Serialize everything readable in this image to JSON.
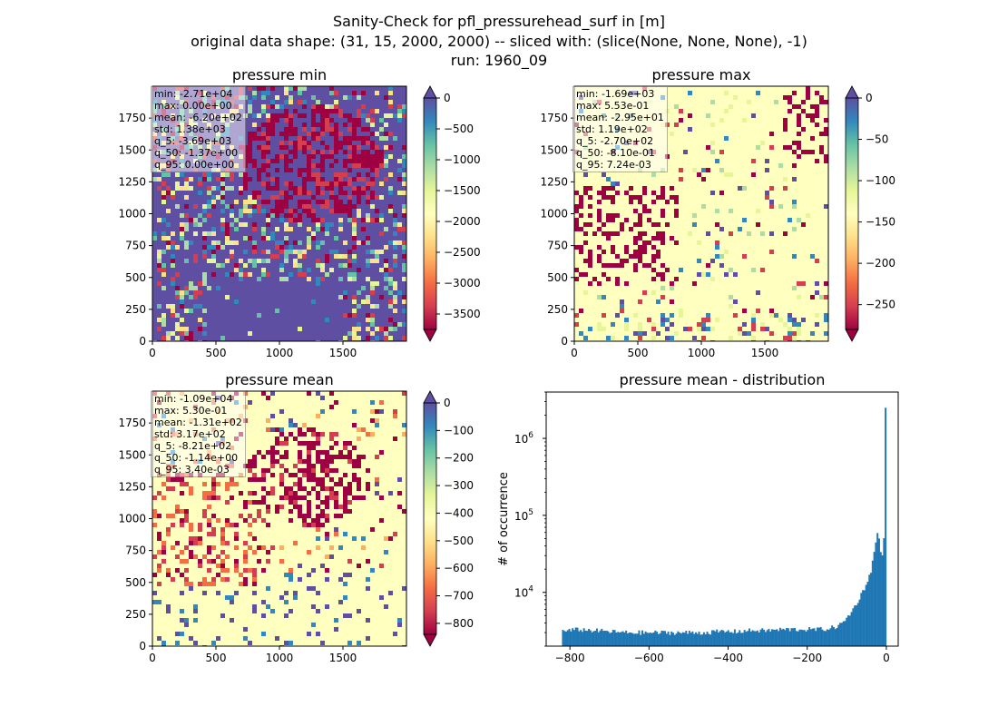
{
  "suptitle": {
    "line1": "Sanity-Check for pfl_pressurehead_surf in [m]",
    "line2": "original data shape: (31, 15, 2000, 2000) -- sliced with: (slice(None, None, None), -1)",
    "line3": "run: 1960_09"
  },
  "chart_data": [
    {
      "type": "heatmap",
      "id": "min",
      "title": "pressure min",
      "xlim": [
        0,
        2000
      ],
      "ylim": [
        0,
        2000
      ],
      "xticks": [
        0,
        500,
        1000,
        1500
      ],
      "yticks": [
        0,
        250,
        500,
        750,
        1000,
        1250,
        1500,
        1750
      ],
      "colormap": "Spectral",
      "colorbar": {
        "min": -3750,
        "max": 0,
        "ticks": [
          0,
          -500,
          -1000,
          -1500,
          -2000,
          -2500,
          -3000,
          -3500
        ],
        "extend": "both",
        "over_color": "#5e4fa2",
        "under_color": "#9e0142"
      },
      "stats": [
        "min: -2.71e+04",
        "max: 0.00e+00",
        "mean: -6.20e+02",
        "std: 1.38e+03",
        "q_5: -3.69e+03",
        "q_50: -1.37e+00",
        "q_95: 0.00e+00"
      ]
    },
    {
      "type": "heatmap",
      "id": "max",
      "title": "pressure max",
      "xlim": [
        0,
        2000
      ],
      "ylim": [
        0,
        2000
      ],
      "xticks": [
        0,
        500,
        1000,
        1500
      ],
      "yticks": [
        0,
        250,
        500,
        750,
        1000,
        1250,
        1500,
        1750
      ],
      "colormap": "Spectral",
      "colorbar": {
        "min": -280,
        "max": 0,
        "ticks": [
          0,
          -50,
          -100,
          -150,
          -200,
          -250
        ],
        "extend": "both",
        "over_color": "#5e4fa2",
        "under_color": "#9e0142"
      },
      "stats": [
        "min: -1.69e+03",
        "max: 5.53e-01",
        "mean: -2.95e+01",
        "std: 1.19e+02",
        "q_5: -2.70e+02",
        "q_50: -8.10e-01",
        "q_95: 7.24e-03"
      ]
    },
    {
      "type": "heatmap",
      "id": "mean",
      "title": "pressure mean",
      "xlim": [
        0,
        2000
      ],
      "ylim": [
        0,
        2000
      ],
      "xticks": [
        0,
        500,
        1000,
        1500
      ],
      "yticks": [
        0,
        250,
        500,
        750,
        1000,
        1250,
        1500,
        1750
      ],
      "colormap": "Spectral",
      "colorbar": {
        "min": -840,
        "max": 0,
        "ticks": [
          0,
          -100,
          -200,
          -300,
          -400,
          -500,
          -600,
          -700,
          -800
        ],
        "extend": "both",
        "over_color": "#5e4fa2",
        "under_color": "#9e0142"
      },
      "stats": [
        "min: -1.09e+04",
        "max: 5.30e-01",
        "mean: -1.31e+02",
        "std: 3.17e+02",
        "q_5: -8.21e+02",
        "q_50: -1.14e+00",
        "q_95: 3.40e-03"
      ]
    },
    {
      "type": "bar",
      "id": "hist",
      "title": "pressure mean - distribution",
      "ylabel": "# of occurrence",
      "xlabel": "",
      "xlim": [
        -860,
        30
      ],
      "ylim_log": [
        2000,
        4000000
      ],
      "yscale": "log",
      "xticks": [
        -800,
        -600,
        -400,
        -200,
        0
      ],
      "yticks": [
        {
          "value": 10000,
          "base": "10",
          "exp": "4"
        },
        {
          "value": 100000,
          "base": "10",
          "exp": "5"
        },
        {
          "value": 1000000,
          "base": "10",
          "exp": "6"
        }
      ],
      "bar_color": "#1f77b4",
      "bins": {
        "x_start": -820,
        "x_end": 0,
        "count": 200,
        "anchors": [
          [
            -820,
            3100
          ],
          [
            -780,
            3300
          ],
          [
            -740,
            3200
          ],
          [
            -700,
            3100
          ],
          [
            -660,
            3000
          ],
          [
            -620,
            3000
          ],
          [
            -580,
            3000
          ],
          [
            -540,
            3000
          ],
          [
            -500,
            3000
          ],
          [
            -460,
            3000
          ],
          [
            -420,
            3100
          ],
          [
            -380,
            3100
          ],
          [
            -340,
            3200
          ],
          [
            -300,
            3200
          ],
          [
            -260,
            3300
          ],
          [
            -220,
            3300
          ],
          [
            -180,
            3300
          ],
          [
            -150,
            3350
          ],
          [
            -125,
            3600
          ],
          [
            -110,
            4000
          ],
          [
            -95,
            5000
          ],
          [
            -80,
            6500
          ],
          [
            -65,
            9000
          ],
          [
            -50,
            13000
          ],
          [
            -40,
            18000
          ],
          [
            -33,
            28000
          ],
          [
            -28,
            40000
          ],
          [
            -24,
            57000
          ],
          [
            -20,
            57000
          ],
          [
            -16,
            40000
          ],
          [
            -12,
            25000
          ],
          [
            -8,
            42000
          ],
          [
            -4,
            55000
          ],
          [
            -1,
            2500000
          ],
          [
            0,
            2500000
          ]
        ]
      }
    }
  ]
}
